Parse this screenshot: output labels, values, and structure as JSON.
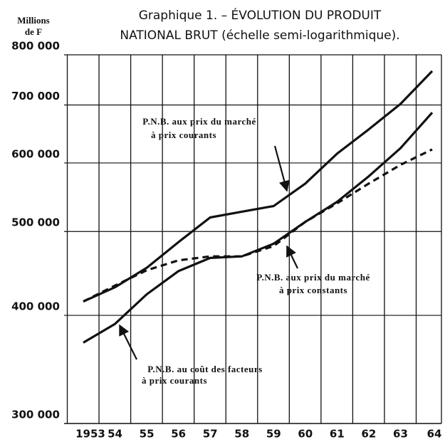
{
  "chart_data": {
    "type": "line",
    "title": [
      "Graphique 1. – ÉVOLUTION DU PRODUIT",
      "NATIONAL BRUT (échelle semi-logarithmique)."
    ],
    "y_label": [
      "Millions",
      "de F"
    ],
    "categories": [
      "1953",
      "54",
      "55",
      "56",
      "57",
      "58",
      "59",
      "60",
      "61",
      "62",
      "63",
      "64"
    ],
    "log_y": true,
    "ylim": [
      300000,
      800000
    ],
    "yticks": [
      {
        "value": 300000,
        "label": "300 000"
      },
      {
        "value": 400000,
        "label": "400 000"
      },
      {
        "value": 500000,
        "label": "500 000"
      },
      {
        "value": 600000,
        "label": "600 000"
      },
      {
        "value": 700000,
        "label": "700 000"
      },
      {
        "value": 800000,
        "label": "800 000"
      }
    ],
    "grid": true,
    "series": [
      {
        "name": [
          "P.N.B. aux prix du marché",
          "à prix courants"
        ],
        "color": "#111111",
        "style": "solid",
        "values": [
          415000,
          431000,
          454000,
          486000,
          519000,
          527000,
          535000,
          568000,
          615000,
          656000,
          702000,
          766000
        ]
      },
      {
        "name": [
          "P.N.B. aux prix du marché",
          "à prix constants"
        ],
        "color": "#111111",
        "style": "dashed",
        "values": [
          415000,
          433000,
          451000,
          463000,
          468000,
          468000,
          481000,
          513000,
          539000,
          568000,
          597000,
          622000
        ]
      },
      {
        "name": [
          "P.N.B. au coût des facteurs",
          "à prix courants"
        ],
        "color": "#111111",
        "style": "solid",
        "values": [
          372000,
          391000,
          423000,
          450000,
          466000,
          468000,
          484000,
          513000,
          541000,
          579000,
          624000,
          686000
        ]
      }
    ]
  }
}
